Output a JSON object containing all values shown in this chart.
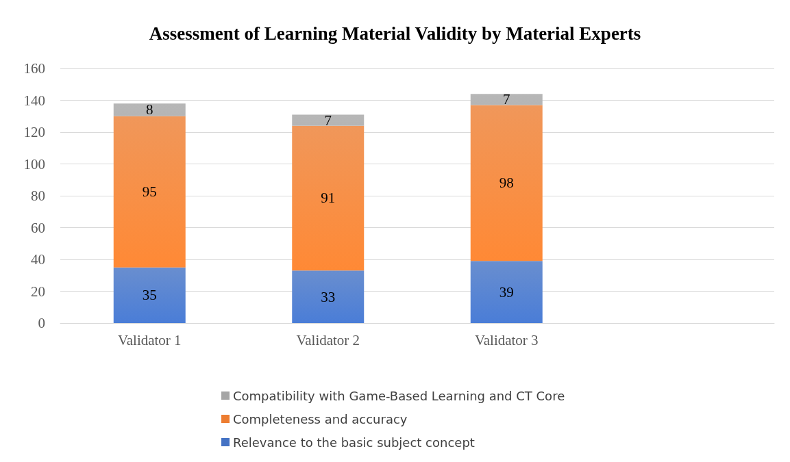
{
  "chart_data": {
    "type": "bar",
    "title": "Assessment of Learning Material Validity by Material Experts",
    "categories": [
      "Validator 1",
      "Validator 2",
      "Validator 3",
      null
    ],
    "stacked": true,
    "data_labels": true,
    "ylim": [
      0,
      160
    ],
    "yticks": [
      0,
      20,
      40,
      60,
      80,
      100,
      120,
      140,
      160
    ],
    "grid": "y",
    "legend": "bottom",
    "series": [
      {
        "name": "Relevance to the basic subject concept",
        "color": "#4472c4",
        "values": [
          35,
          33,
          39,
          null
        ]
      },
      {
        "name": "Completeness and accuracy",
        "color": "#ed7d31",
        "values": [
          95,
          91,
          98,
          null
        ]
      },
      {
        "name": "Compatibility with Game-Based Learning and CT Core",
        "color": "#a5a5a5",
        "values": [
          8,
          7,
          7,
          null
        ]
      }
    ]
  }
}
